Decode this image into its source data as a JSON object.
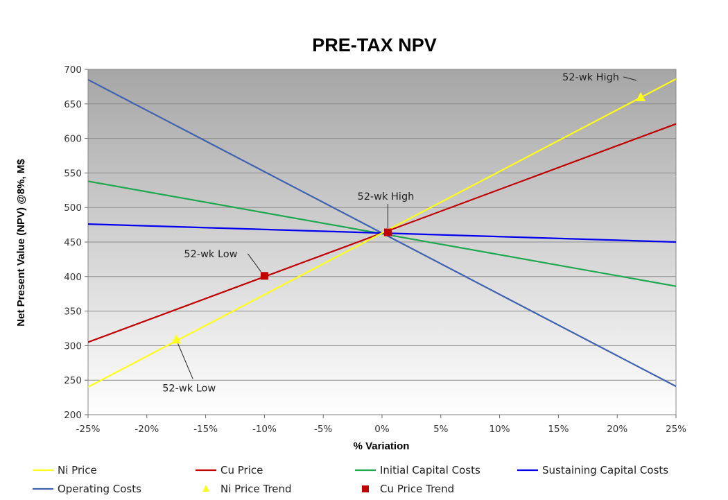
{
  "chart_data": {
    "type": "line",
    "title": "PRE-TAX NPV",
    "xlabel": "% Variation",
    "ylabel": "Net Present Value (NPV) @8%, M$",
    "xlim": [
      -25,
      25
    ],
    "ylim": [
      200,
      700
    ],
    "x_ticks": [
      -25,
      -20,
      -15,
      -10,
      -5,
      0,
      5,
      10,
      15,
      20,
      25
    ],
    "x_tick_labels": [
      "-25%",
      "-20%",
      "-15%",
      "-10%",
      "-5%",
      "0%",
      "5%",
      "10%",
      "15%",
      "20%",
      "25%"
    ],
    "y_ticks": [
      200,
      250,
      300,
      350,
      400,
      450,
      500,
      550,
      600,
      650,
      700
    ],
    "y_tick_labels": [
      "200",
      "250",
      "300",
      "350",
      "400",
      "450",
      "500",
      "550",
      "600",
      "650",
      "700"
    ],
    "grid": true,
    "legend_position": "bottom",
    "series": [
      {
        "name": "Ni Price",
        "color": "#ffff1a",
        "x": [
          -25,
          25
        ],
        "y": [
          240,
          686
        ]
      },
      {
        "name": "Cu Price",
        "color": "#c00000",
        "x": [
          -25,
          25
        ],
        "y": [
          305,
          621
        ]
      },
      {
        "name": "Initial Capital Costs",
        "color": "#1fa84f",
        "x": [
          -25,
          25
        ],
        "y": [
          538,
          386
        ]
      },
      {
        "name": "Sustaining Capital Costs",
        "color": "#0000ee",
        "x": [
          -25,
          25
        ],
        "y": [
          476,
          450
        ]
      },
      {
        "name": "Operating Costs",
        "color": "#3f62b0",
        "x": [
          -25,
          25
        ],
        "y": [
          685,
          241
        ]
      }
    ],
    "markers": [
      {
        "name": "Ni Price Trend",
        "shape": "triangle",
        "color": "#ffff1a",
        "points": [
          {
            "x": -17.5,
            "y": 308
          },
          {
            "x": 22,
            "y": 659
          }
        ]
      },
      {
        "name": "Cu Price Trend",
        "shape": "square",
        "color": "#c00000",
        "points": [
          {
            "x": -10,
            "y": 401
          },
          {
            "x": 0.5,
            "y": 464
          }
        ]
      }
    ],
    "annotations": [
      {
        "text": "52-wk High",
        "target_series": "Ni Price Trend",
        "target_x": 22,
        "target_y": 659
      },
      {
        "text": "52-wk High",
        "target_series": "Cu Price Trend",
        "target_x": 0.5,
        "target_y": 464
      },
      {
        "text": "52-wk Low",
        "target_series": "Cu Price Trend",
        "target_x": -10,
        "target_y": 401
      },
      {
        "text": "52-wk Low",
        "target_series": "Ni Price Trend",
        "target_x": -17.5,
        "target_y": 308
      }
    ],
    "background_gradient": [
      "#a6a6a6",
      "#ffffff"
    ]
  }
}
